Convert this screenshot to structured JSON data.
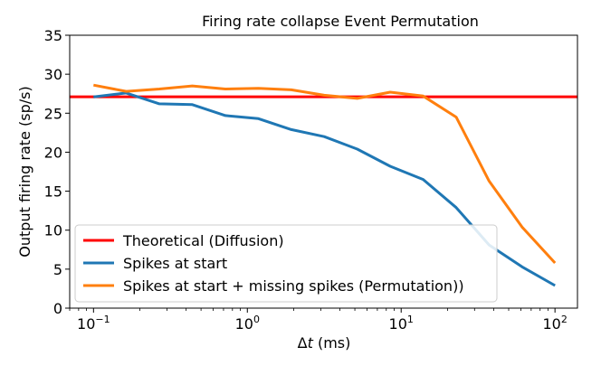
{
  "chart_data": {
    "type": "line",
    "title": "Firing rate collapse Event Permutation",
    "xlabel_prefix": "Δ",
    "xlabel_var": "t",
    "xlabel_unit": " (ms)",
    "ylabel": "Output firing rate (sp/s)",
    "xscale": "log",
    "xlim": [
      0.07,
      140
    ],
    "ylim": [
      0,
      35
    ],
    "yticks": [
      0,
      5,
      10,
      15,
      20,
      25,
      30,
      35
    ],
    "yticklabels": [
      "0",
      "5",
      "10",
      "15",
      "20",
      "25",
      "30",
      "35"
    ],
    "xticks": [
      {
        "value": 0.1,
        "base": "10",
        "exp": "−1"
      },
      {
        "value": 1,
        "base": "10",
        "exp": "0"
      },
      {
        "value": 10,
        "base": "10",
        "exp": "1"
      },
      {
        "value": 100,
        "base": "10",
        "exp": "2"
      }
    ],
    "grid": false,
    "legend_placement": "lower-left",
    "series": [
      {
        "name": "Theoretical (Diffusion)",
        "color": "#ff0000",
        "kind": "hline",
        "y": 27.1
      },
      {
        "name": "Spikes at start",
        "color": "#1f77b4",
        "x": [
          0.1,
          0.163,
          0.268,
          0.439,
          0.72,
          1.18,
          1.93,
          3.16,
          5.18,
          8.48,
          13.9,
          22.8,
          37.3,
          61.1,
          100
        ],
        "y": [
          27.1,
          27.6,
          26.2,
          26.1,
          24.7,
          24.3,
          22.9,
          22.0,
          20.4,
          18.2,
          16.5,
          12.9,
          8.1,
          5.3,
          2.9
        ]
      },
      {
        "name": "Spikes at start + missing spikes (Permutation))",
        "color": "#ff7f0e",
        "x": [
          0.1,
          0.163,
          0.268,
          0.439,
          0.72,
          1.18,
          1.93,
          3.16,
          5.18,
          8.48,
          13.9,
          22.8,
          37.3,
          61.1,
          100
        ],
        "y": [
          28.6,
          27.8,
          28.1,
          28.5,
          28.1,
          28.2,
          28.0,
          27.3,
          26.9,
          27.7,
          27.2,
          24.5,
          16.3,
          10.4,
          5.8
        ]
      }
    ]
  }
}
